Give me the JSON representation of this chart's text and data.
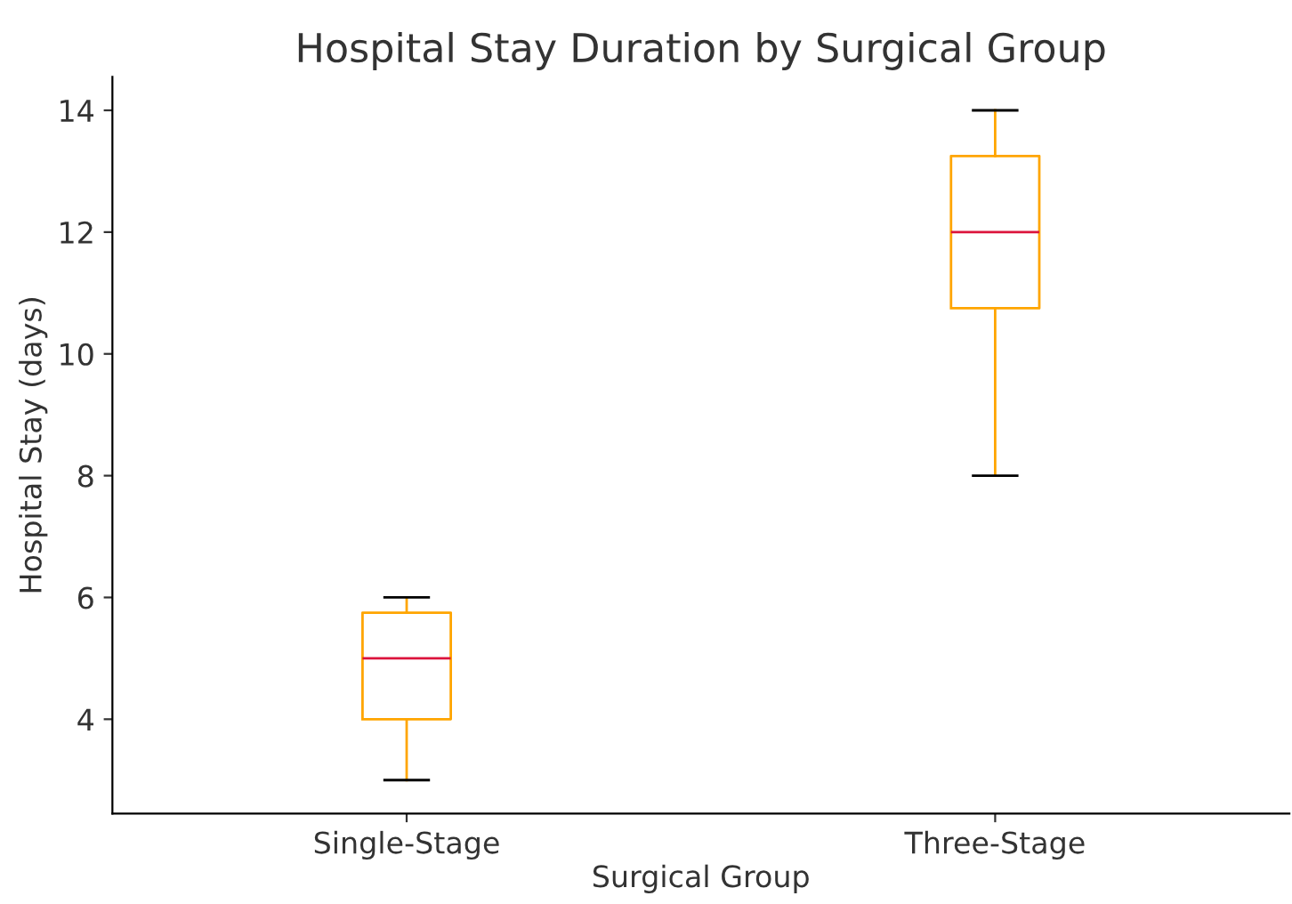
{
  "chart_data": {
    "type": "box",
    "title": "Hospital Stay Duration by Surgical Group",
    "xlabel": "Surgical Group",
    "ylabel": "Hospital Stay (days)",
    "categories": [
      "Single-Stage",
      "Three-Stage"
    ],
    "series": [
      {
        "color": "#ffa500",
        "boxes": [
          {
            "low": 3,
            "q1": 4,
            "median": 5,
            "q3": 5.75,
            "high": 6
          },
          {
            "low": 8,
            "q1": 10.75,
            "median": 12,
            "q3": 13.25,
            "high": 14
          }
        ]
      }
    ],
    "ylim": [
      2.45,
      14.55
    ],
    "yticks": [
      4,
      6,
      8,
      10,
      12,
      14
    ],
    "grid": false,
    "legend": false
  }
}
